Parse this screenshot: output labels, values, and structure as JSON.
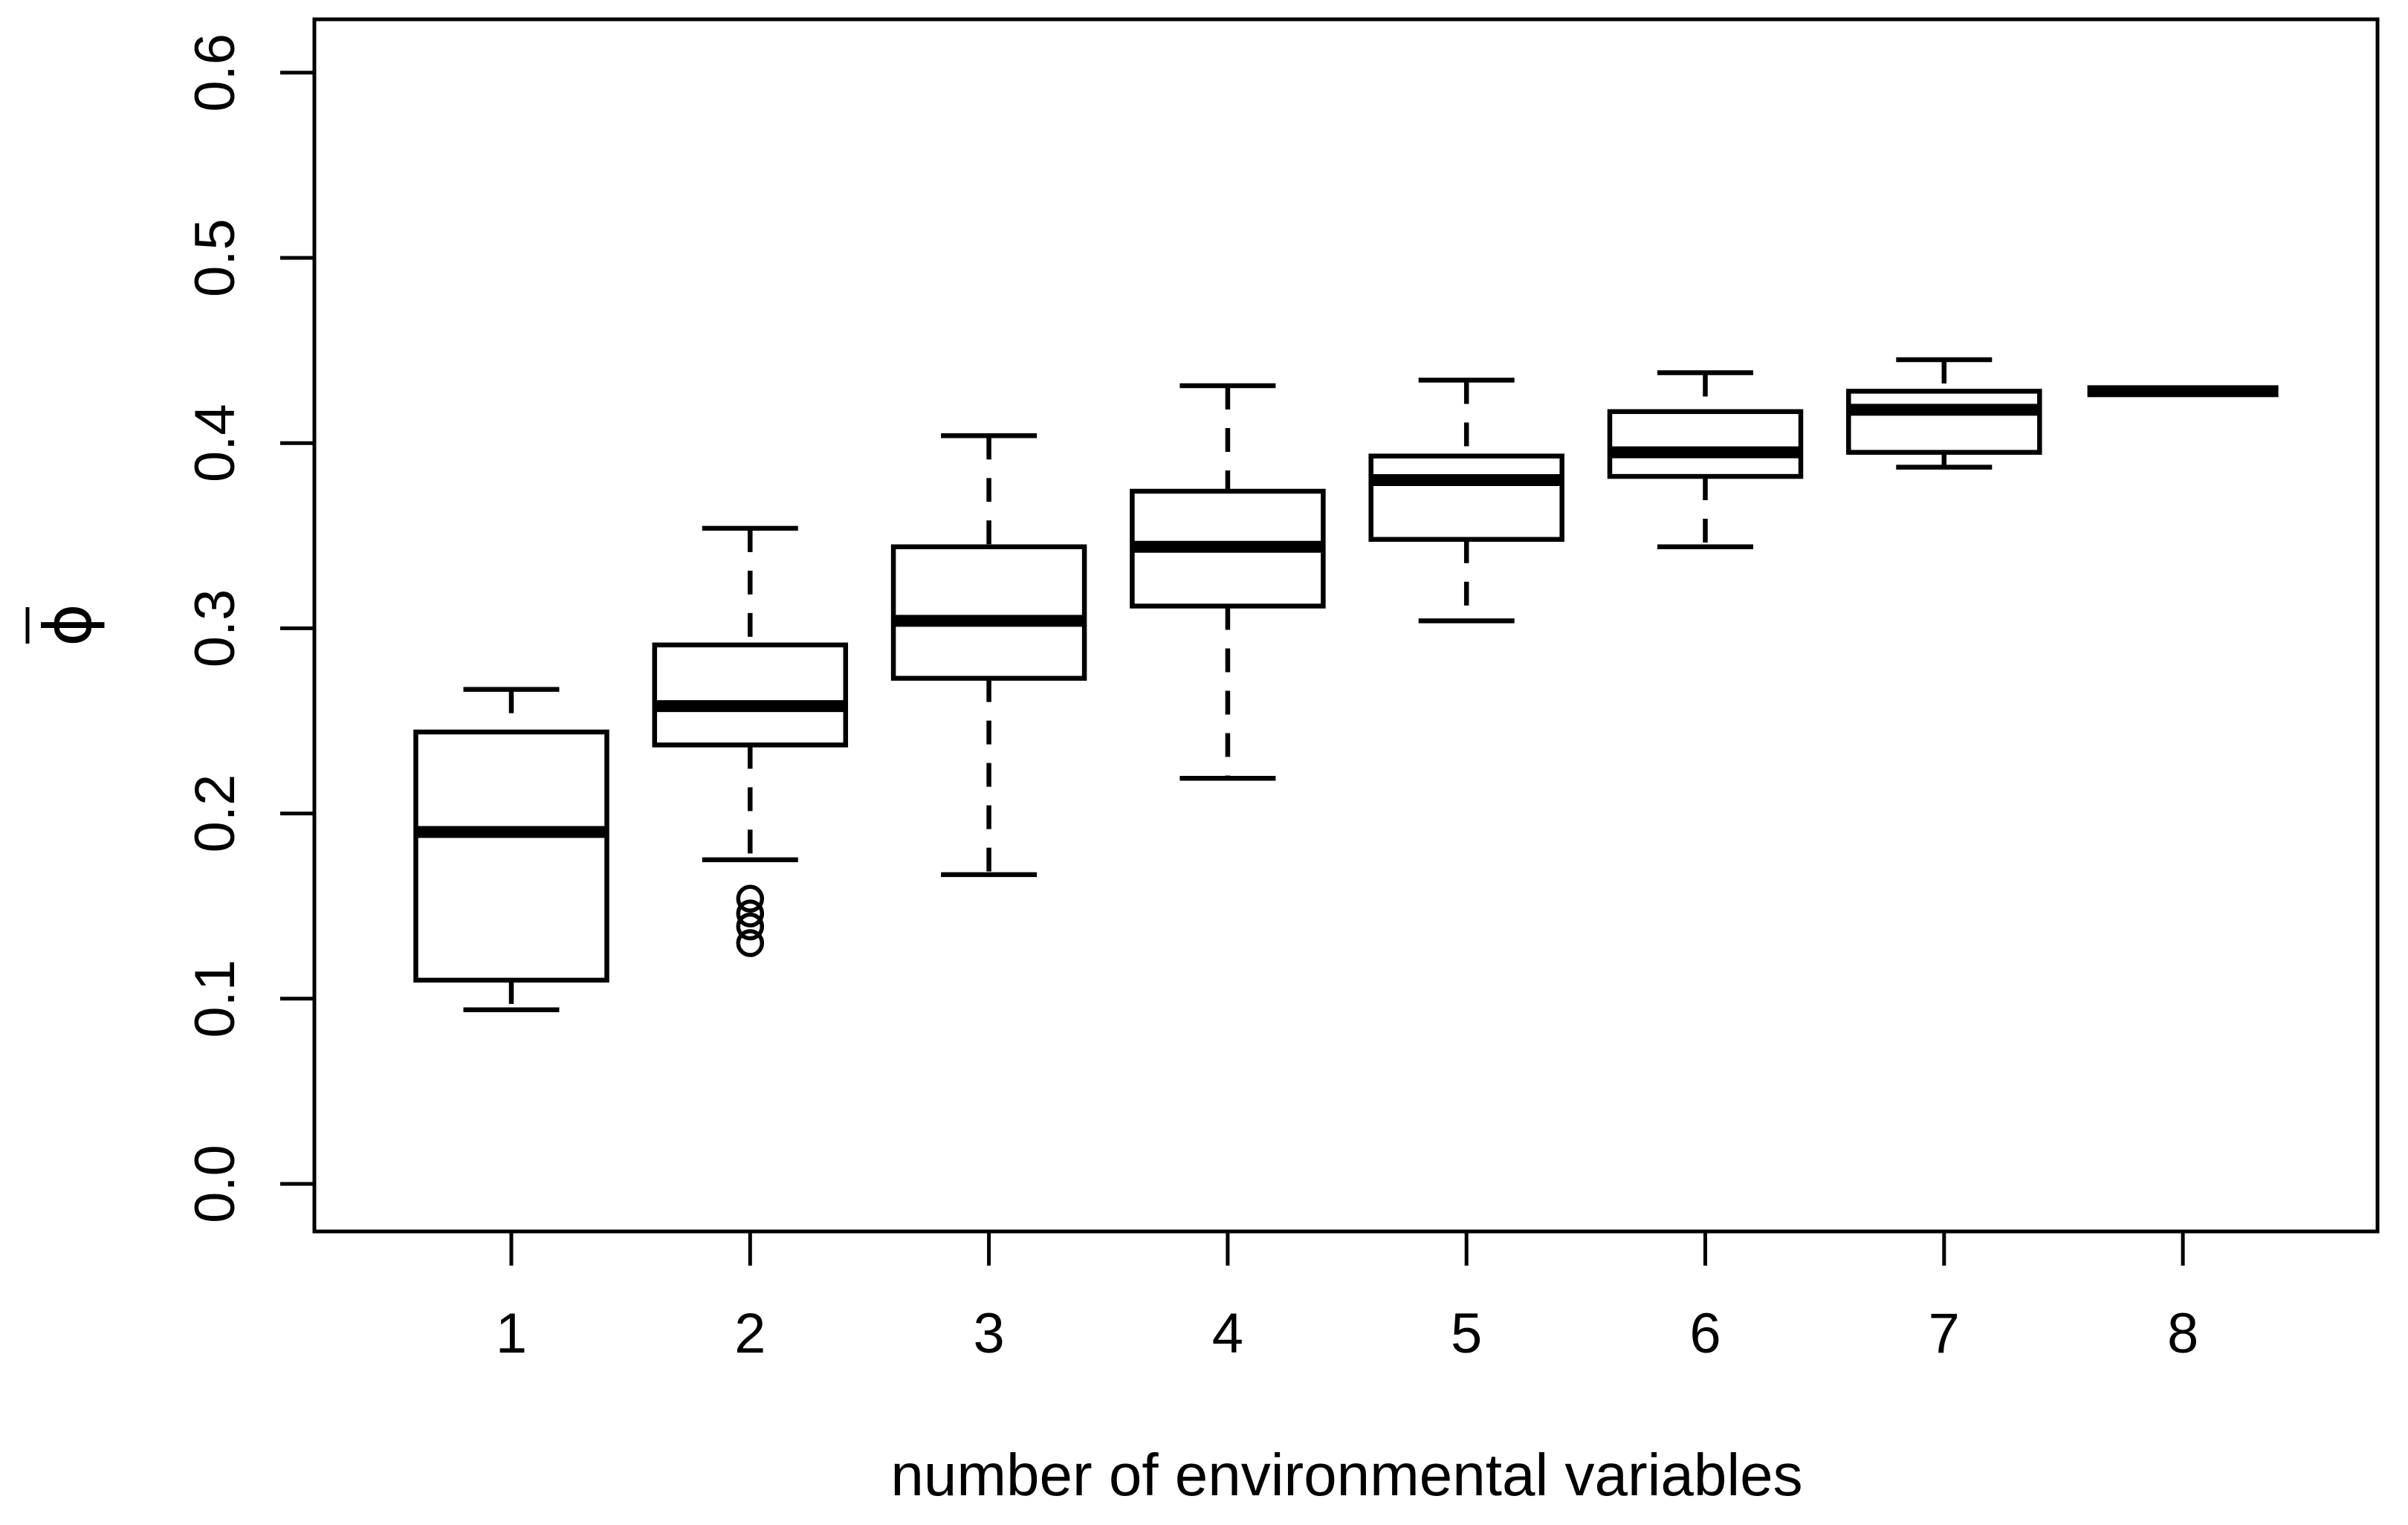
{
  "page": {
    "background": "#ffffff"
  },
  "chart_data": {
    "type": "boxplot",
    "title": "",
    "xlabel": "number of environmental variables",
    "ylabel": "ϕ̄",
    "categories": [
      "1",
      "2",
      "3",
      "4",
      "5",
      "6",
      "7",
      "8"
    ],
    "y_tick_labels": [
      "0.0",
      "0.1",
      "0.2",
      "0.3",
      "0.4",
      "0.5",
      "0.6"
    ],
    "ylim": [
      0.0,
      0.6
    ],
    "grid": false,
    "legend_position": "none",
    "frame": true,
    "series": [
      {
        "category": "1",
        "whisker_low": 0.094,
        "q1": 0.11,
        "median": 0.19,
        "q3": 0.244,
        "whisker_high": 0.267,
        "outliers": []
      },
      {
        "category": "2",
        "whisker_low": 0.175,
        "q1": 0.237,
        "median": 0.258,
        "q3": 0.291,
        "whisker_high": 0.354,
        "outliers": [
          0.154,
          0.146,
          0.139,
          0.13
        ]
      },
      {
        "category": "3",
        "whisker_low": 0.167,
        "q1": 0.273,
        "median": 0.304,
        "q3": 0.344,
        "whisker_high": 0.404,
        "outliers": []
      },
      {
        "category": "4",
        "whisker_low": 0.219,
        "q1": 0.312,
        "median": 0.344,
        "q3": 0.374,
        "whisker_high": 0.431,
        "outliers": []
      },
      {
        "category": "5",
        "whisker_low": 0.304,
        "q1": 0.348,
        "median": 0.38,
        "q3": 0.393,
        "whisker_high": 0.434,
        "outliers": []
      },
      {
        "category": "6",
        "whisker_low": 0.344,
        "q1": 0.382,
        "median": 0.395,
        "q3": 0.417,
        "whisker_high": 0.438,
        "outliers": []
      },
      {
        "category": "7",
        "whisker_low": 0.387,
        "q1": 0.395,
        "median": 0.418,
        "q3": 0.428,
        "whisker_high": 0.445,
        "outliers": []
      },
      {
        "category": "8",
        "whisker_low": 0.428,
        "q1": 0.428,
        "median": 0.428,
        "q3": 0.428,
        "whisker_high": 0.428,
        "outliers": []
      }
    ],
    "colors": {
      "stroke": "#000000",
      "box_fill": "#ffffff",
      "background": "#ffffff"
    }
  }
}
